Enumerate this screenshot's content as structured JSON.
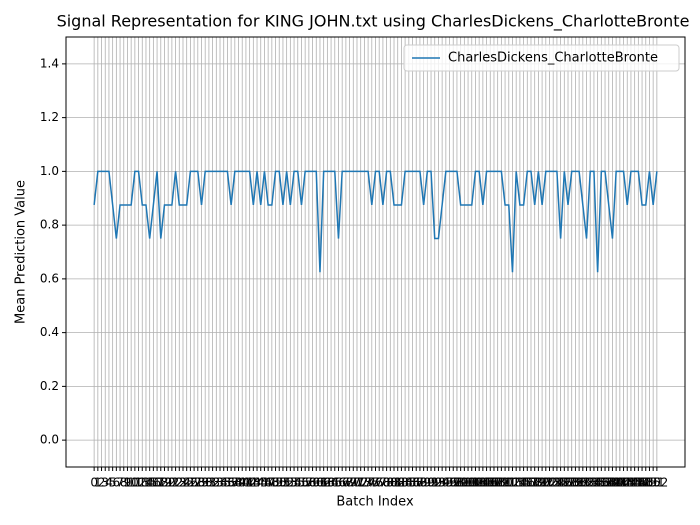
{
  "chart_data": {
    "type": "line",
    "title": "Signal Representation for KING JOHN.txt using CharlesDickens_CharlotteBronte",
    "xlabel": "Batch Index",
    "ylabel": "Mean Prediction Value",
    "x": [
      0,
      1,
      2,
      3,
      4,
      5,
      6,
      7,
      8,
      9,
      10,
      11,
      12,
      13,
      14,
      15,
      16,
      17,
      18,
      19,
      20,
      21,
      22,
      23,
      24,
      25,
      26,
      27,
      28,
      29,
      30,
      31,
      32,
      33,
      34,
      35,
      36,
      37,
      38,
      39,
      40,
      41,
      42,
      43,
      44,
      45,
      46,
      47,
      48,
      49,
      50,
      51,
      52,
      53,
      54,
      55,
      56,
      57,
      58,
      59,
      60,
      61,
      62,
      63,
      64,
      65,
      66,
      67,
      68,
      69,
      70,
      71,
      72,
      73,
      74,
      75,
      76,
      77,
      78,
      79,
      80,
      81,
      82,
      83,
      84,
      85,
      86,
      87,
      88,
      89,
      90,
      91,
      92,
      93,
      94,
      95,
      96,
      97,
      98,
      99,
      100,
      101,
      102,
      103,
      104,
      105,
      106,
      107,
      108,
      109,
      110,
      111,
      112,
      113,
      114,
      115,
      116,
      117,
      118,
      119,
      120,
      121,
      122,
      123,
      124,
      125,
      126,
      127,
      128,
      129,
      130,
      131,
      132,
      133,
      134,
      135,
      136,
      137,
      138,
      139,
      140,
      141,
      142,
      143,
      144,
      145,
      146,
      147,
      148,
      149,
      150,
      151,
      152
    ],
    "series": [
      {
        "name": "CharlesDickens_CharlotteBronte",
        "color": "#1f77b4",
        "values": [
          0.875,
          1,
          1,
          1,
          1,
          0.875,
          0.75,
          0.875,
          0.875,
          0.875,
          0.875,
          1,
          1,
          0.875,
          0.875,
          0.75,
          0.875,
          1,
          0.75,
          0.875,
          0.875,
          0.875,
          1,
          0.875,
          0.875,
          0.875,
          1,
          1,
          1,
          0.875,
          1,
          1,
          1,
          1,
          1,
          1,
          1,
          0.875,
          1,
          1,
          1,
          1,
          1,
          0.875,
          1,
          0.875,
          1,
          0.875,
          0.875,
          1,
          1,
          0.875,
          1,
          0.875,
          1,
          1,
          0.875,
          1,
          1,
          1,
          1,
          0.625,
          1,
          1,
          1,
          1,
          0.75,
          1,
          1,
          1,
          1,
          1,
          1,
          1,
          1,
          0.875,
          1,
          1,
          0.875,
          1,
          1,
          0.875,
          0.875,
          0.875,
          1,
          1,
          1,
          1,
          1,
          0.875,
          1,
          1,
          0.75,
          0.75,
          0.875,
          1,
          1,
          1,
          1,
          0.875,
          0.875,
          0.875,
          0.875,
          1,
          1,
          0.875,
          1,
          1,
          1,
          1,
          1,
          0.875,
          0.875,
          0.625,
          1,
          0.875,
          0.875,
          1,
          1,
          0.875,
          1,
          0.875,
          1,
          1,
          1,
          1,
          0.75,
          1,
          0.875,
          1,
          1,
          1,
          0.875,
          0.75,
          1,
          1,
          0.625,
          1,
          1,
          0.875,
          0.75,
          1,
          1,
          1,
          0.875,
          1,
          1,
          1,
          0.875,
          0.875,
          1,
          0.875,
          1
        ]
      }
    ],
    "xlim": [
      -7.6,
      159.6
    ],
    "ylim": [
      -0.1,
      1.5
    ],
    "yticks": [
      {
        "value": 0,
        "label": "0.0"
      },
      0.2,
      0.4,
      0.6,
      0.8,
      {
        "value": 1,
        "label": "1.0"
      },
      1.2,
      1.4
    ],
    "grid": true,
    "legend": "upper right"
  }
}
